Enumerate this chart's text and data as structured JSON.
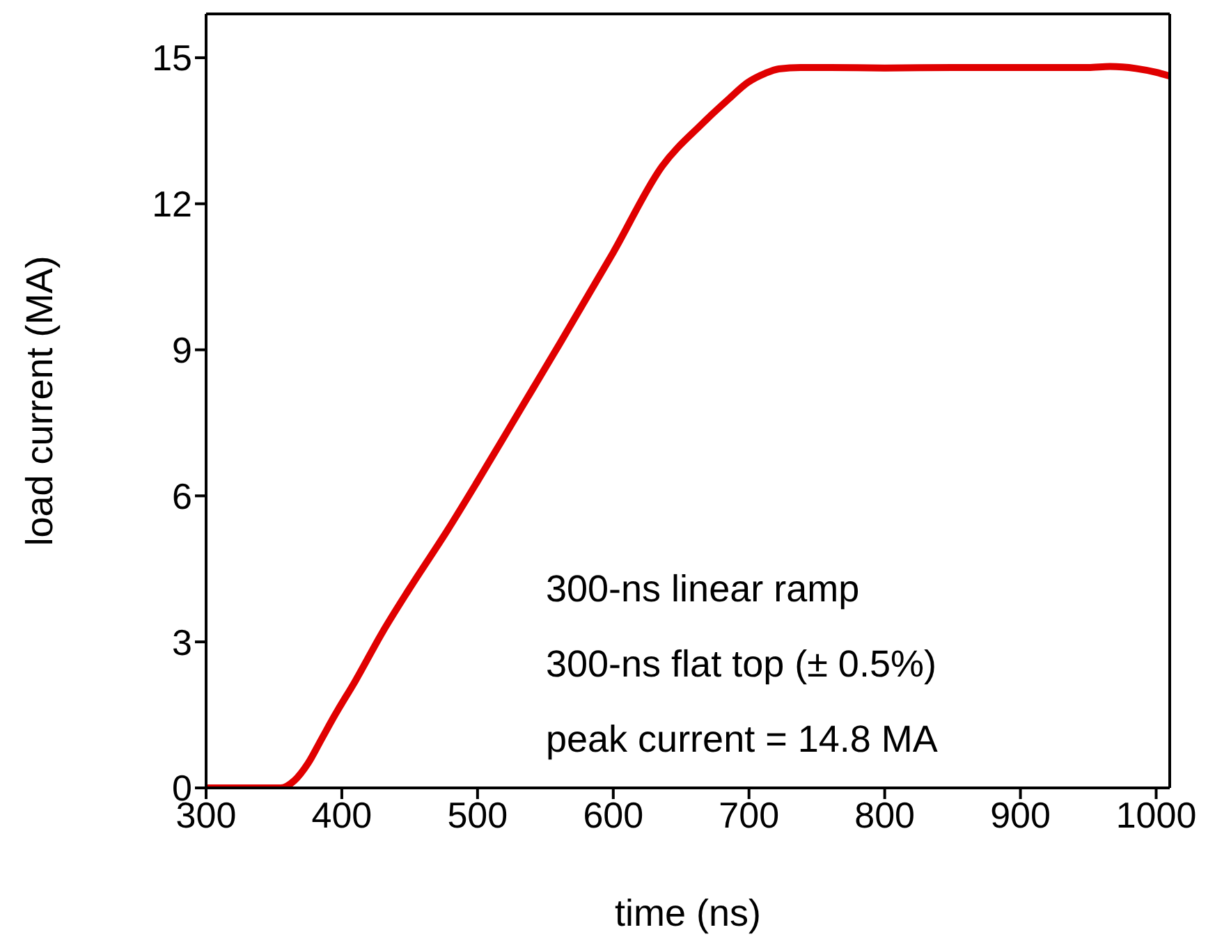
{
  "chart_data": {
    "type": "line",
    "xlabel": "time (ns)",
    "ylabel": "load current (MA)",
    "annotations": [
      "300-ns linear ramp",
      "300-ns flat top (± 0.5%)",
      "peak current = 14.8 MA"
    ],
    "series": [
      {
        "color": "#e00000",
        "x": [
          300,
          320,
          340,
          355,
          365,
          375,
          385,
          395,
          410,
          430,
          450,
          478,
          500,
          530,
          560,
          600,
          636,
          665,
          685,
          699,
          712,
          722,
          738,
          760,
          800,
          850,
          900,
          950,
          966,
          985,
          1000,
          1009
        ],
        "values": [
          0,
          0,
          0,
          0,
          0.15,
          0.5,
          1.0,
          1.5,
          2.2,
          3.2,
          4.1,
          5.3,
          6.3,
          7.7,
          9.1,
          11.0,
          12.77,
          13.63,
          14.15,
          14.49,
          14.68,
          14.77,
          14.8,
          14.8,
          14.79,
          14.8,
          14.8,
          14.8,
          14.82,
          14.78,
          14.7,
          14.63
        ]
      }
    ],
    "xlim": [
      300,
      1010
    ],
    "xticks": [
      300,
      400,
      500,
      600,
      700,
      800,
      900,
      1000
    ],
    "ylim": [
      0,
      15.9
    ],
    "yticks": [
      0,
      3,
      6,
      9,
      12,
      15
    ],
    "grid": false,
    "legend": false,
    "marker": "none",
    "line_style": "solid"
  }
}
